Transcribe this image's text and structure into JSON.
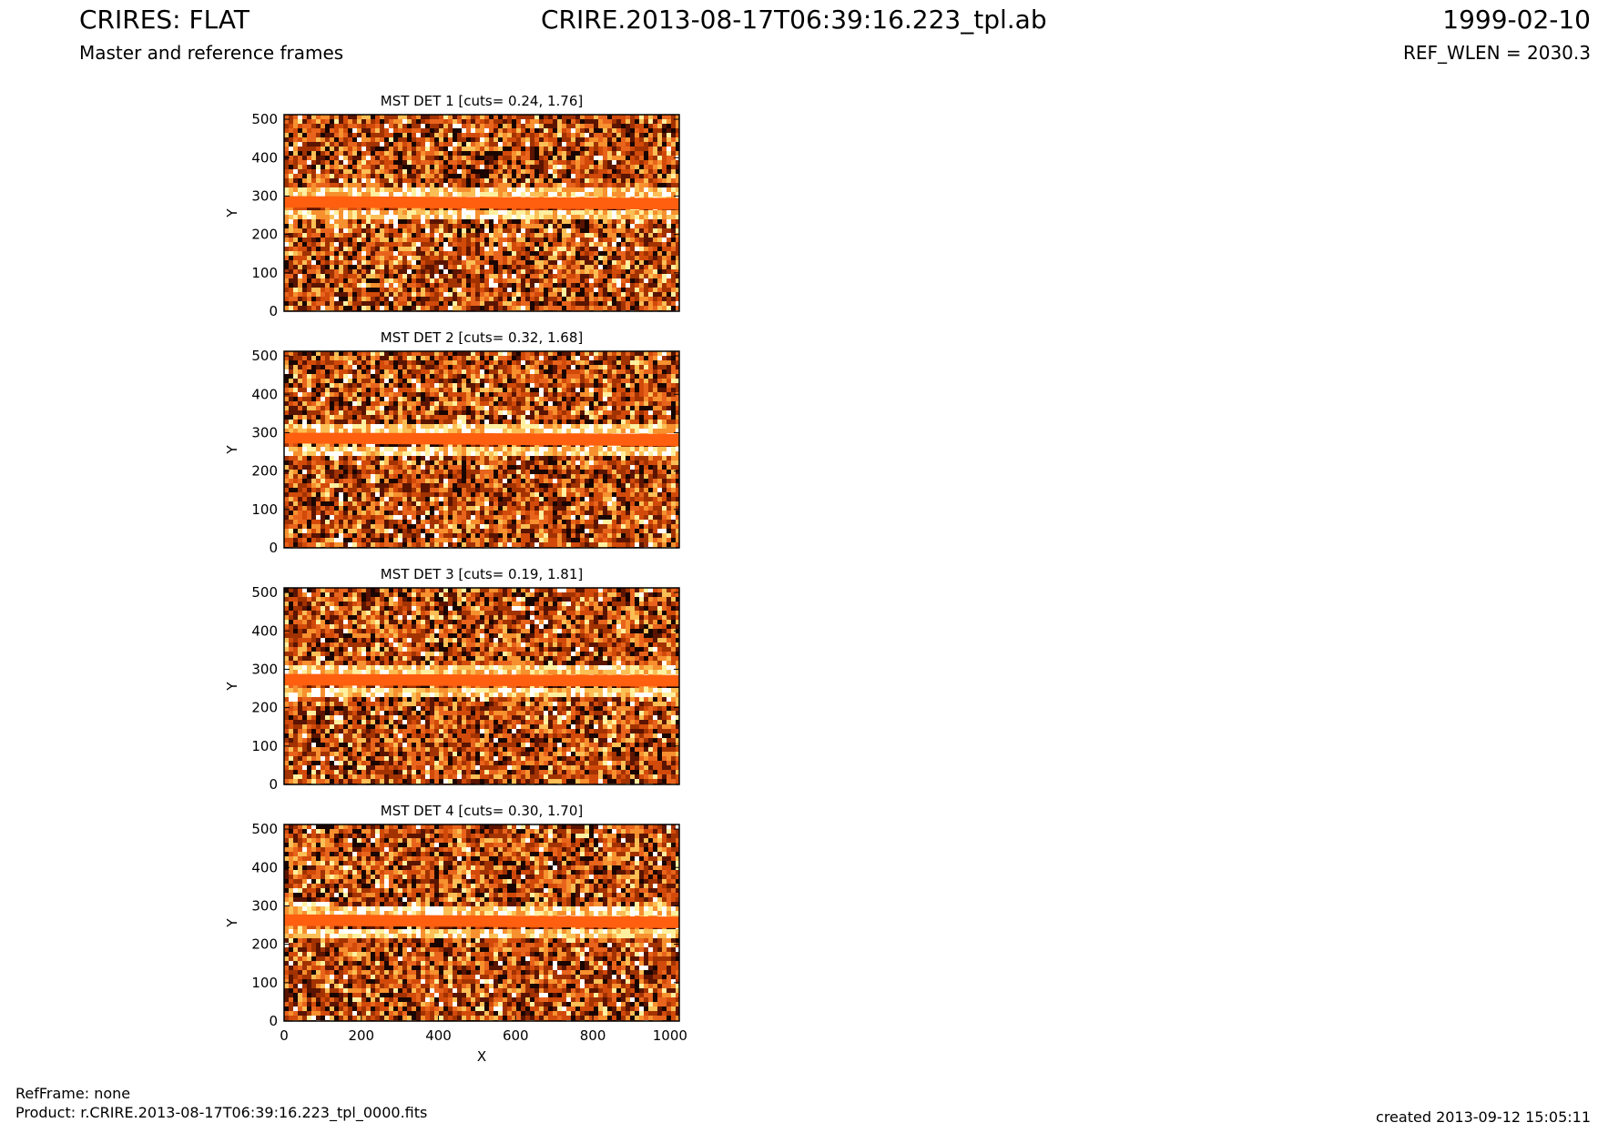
{
  "header": {
    "title": "CRIRES: FLAT",
    "subtitle": "Master and reference frames",
    "file": "CRIRE.2013-08-17T06:39:16.223_tpl.ab",
    "date": "1999-02-10",
    "ref_wlen": "REF_WLEN = 2030.3"
  },
  "footer": {
    "refframe": "RefFrame: none",
    "product": "Product: r.CRIRE.2013-08-17T06:39:16.223_tpl_0000.fits",
    "created": "created 2013-09-12 15:05:11"
  },
  "colors": {
    "band": "#ff5f0f",
    "noise_palette": [
      "#1a0500",
      "#5a1400",
      "#a23200",
      "#d24a0a",
      "#e8641c",
      "#f7902e",
      "#fbbf55",
      "#fff0a0",
      "#ffffff"
    ]
  },
  "chart_data": [
    {
      "type": "heatmap",
      "title": "MST DET 1 [cuts= 0.24, 1.76]",
      "ylabel": "Y",
      "xlabel": "",
      "xlim": [
        0,
        1024
      ],
      "ylim": [
        0,
        512
      ],
      "xticks": [],
      "yticks": [
        0,
        100,
        200,
        300,
        400,
        500
      ],
      "band": {
        "y_start_left": 300,
        "y_end_left": 270,
        "y_start_right": 295,
        "y_end_right": 265
      }
    },
    {
      "type": "heatmap",
      "title": "MST DET 2 [cuts= 0.32, 1.68]",
      "ylabel": "Y",
      "xlabel": "",
      "xlim": [
        0,
        1024
      ],
      "ylim": [
        0,
        512
      ],
      "xticks": [],
      "yticks": [
        0,
        100,
        200,
        300,
        400,
        500
      ],
      "band": {
        "y_start_left": 300,
        "y_end_left": 272,
        "y_start_right": 297,
        "y_end_right": 265
      }
    },
    {
      "type": "heatmap",
      "title": "MST DET 3 [cuts= 0.19, 1.81]",
      "ylabel": "Y",
      "xlabel": "",
      "xlim": [
        0,
        1024
      ],
      "ylim": [
        0,
        512
      ],
      "xticks": [],
      "yticks": [
        0,
        100,
        200,
        300,
        400,
        500
      ],
      "band": {
        "y_start_left": 288,
        "y_end_left": 258,
        "y_start_right": 285,
        "y_end_right": 255
      }
    },
    {
      "type": "heatmap",
      "title": "MST DET 4 [cuts= 0.30, 1.70]",
      "ylabel": "Y",
      "xlabel": "X",
      "xlim": [
        0,
        1024
      ],
      "ylim": [
        0,
        512
      ],
      "xticks": [
        0,
        200,
        400,
        600,
        800,
        1000
      ],
      "yticks": [
        0,
        100,
        200,
        300,
        400,
        500
      ],
      "band": {
        "y_start_left": 278,
        "y_end_left": 248,
        "y_start_right": 272,
        "y_end_right": 242
      }
    }
  ]
}
